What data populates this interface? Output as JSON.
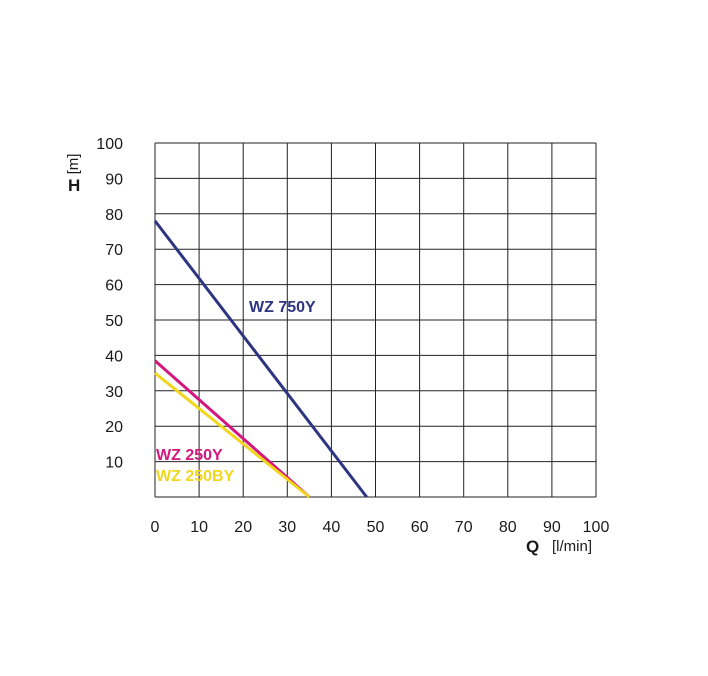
{
  "chart_data": {
    "type": "line",
    "title": "",
    "x_axis": {
      "symbol": "Q",
      "unit": "[l/min]",
      "range": [
        0,
        100
      ],
      "ticks": [
        "0",
        "10",
        "20",
        "30",
        "40",
        "50",
        "60",
        "70",
        "80",
        "90",
        "100"
      ]
    },
    "y_axis": {
      "symbol": "H",
      "unit": "[m]",
      "range": [
        0,
        100
      ],
      "ticks": [
        "10",
        "20",
        "30",
        "40",
        "50",
        "60",
        "70",
        "80",
        "90",
        "100"
      ]
    },
    "grid": true,
    "series": [
      {
        "name": "WZ 750Y",
        "color": "#2e3580",
        "points": [
          [
            0,
            78
          ],
          [
            48,
            0
          ]
        ]
      },
      {
        "name": "WZ 250Y",
        "color": "#d4167f",
        "points": [
          [
            0,
            38.5
          ],
          [
            35,
            0
          ]
        ]
      },
      {
        "name": "WZ 250BY",
        "color": "#f2d61c",
        "points": [
          [
            0,
            35
          ],
          [
            35,
            0
          ]
        ]
      }
    ]
  }
}
